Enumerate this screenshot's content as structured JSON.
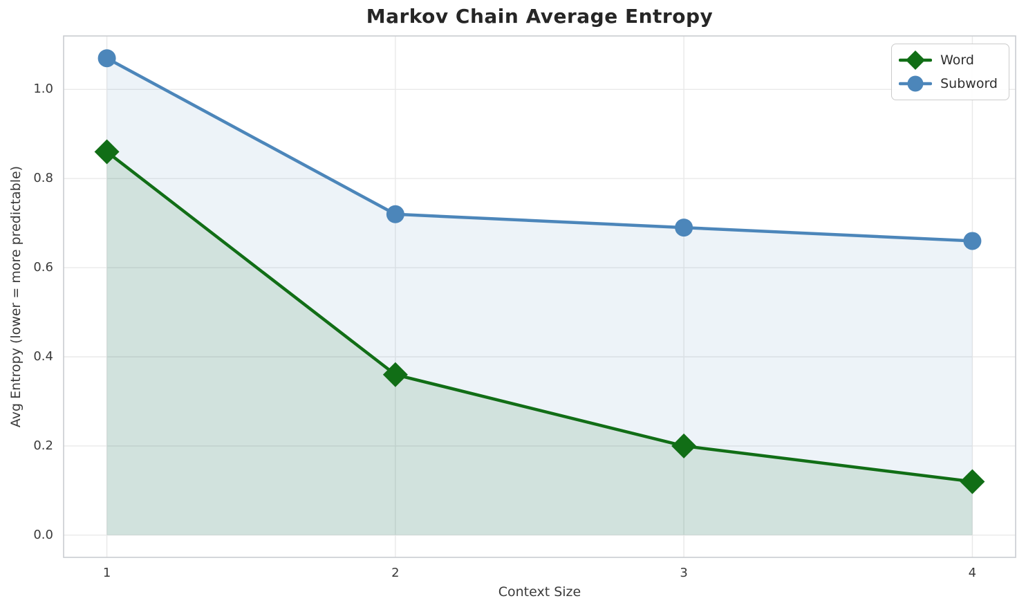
{
  "figure": {
    "background": "#ffffff",
    "grid_color": "#e9e9e9",
    "spine_color": "#c9ccd0",
    "tick_color": "#3a3a3a",
    "title_color": "#262626"
  },
  "chart_data": {
    "type": "line",
    "title": "Markov Chain Average Entropy",
    "xlabel": "Context Size",
    "ylabel": "Avg Entropy (lower = more predictable)",
    "x": [
      1,
      2,
      3,
      4
    ],
    "xtick_labels": [
      "1",
      "2",
      "3",
      "4"
    ],
    "ytick_values": [
      0.0,
      0.2,
      0.4,
      0.6,
      0.8,
      1.0
    ],
    "ytick_labels": [
      "0.0",
      "0.2",
      "0.4",
      "0.6",
      "0.8",
      "1.0"
    ],
    "xlim": [
      0.85,
      4.15
    ],
    "ylim": [
      -0.05,
      1.12
    ],
    "grid": true,
    "legend": {
      "position": "upper-right",
      "entries": [
        "Word",
        "Subword"
      ]
    },
    "series": [
      {
        "name": "Word",
        "values": [
          0.86,
          0.36,
          0.2,
          0.12
        ],
        "color": "#116e16",
        "marker": "diamond",
        "marker_size": 18,
        "line_width": 4.5,
        "fill_to_zero": true,
        "fill_opacity": 0.13
      },
      {
        "name": "Subword",
        "values": [
          1.07,
          0.72,
          0.69,
          0.66
        ],
        "color": "#4c86ba",
        "marker": "circle",
        "marker_size": 13,
        "line_width": 4.5,
        "fill_to_zero": true,
        "fill_opacity": 0.1
      }
    ]
  }
}
